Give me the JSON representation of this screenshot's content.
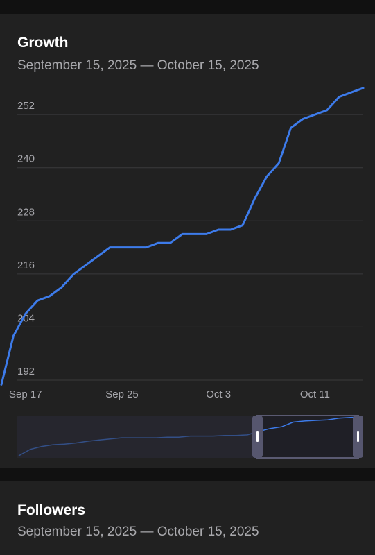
{
  "growth": {
    "title": "Growth",
    "subtitle": "September 15, 2025 — October 15, 2025"
  },
  "followers": {
    "title": "Followers",
    "subtitle": "September 15, 2025 — October 15, 2025"
  },
  "colors": {
    "background": "#111111",
    "card": "#212121",
    "line": "#3d7bea",
    "grid": "#3a3a3c",
    "text_secondary": "#a9a9ad",
    "navigator_bg": "#2c2c34",
    "navigator_window_border": "#5a5a72"
  },
  "chart_data": {
    "type": "line",
    "title": "Growth",
    "subtitle": "September 15, 2025 — October 15, 2025",
    "xlabel": "",
    "ylabel": "",
    "x_range": [
      "2025-09-15",
      "2025-10-15"
    ],
    "ylim": [
      192,
      255
    ],
    "yticks": [
      192,
      204,
      216,
      228,
      240,
      252
    ],
    "xticks": [
      {
        "date": "2025-09-17",
        "label": "Sep 17"
      },
      {
        "date": "2025-09-25",
        "label": "Sep 25"
      },
      {
        "date": "2025-10-03",
        "label": "Oct 3"
      },
      {
        "date": "2025-10-11",
        "label": "Oct 11"
      }
    ],
    "grid": true,
    "legend": "none",
    "series": [
      {
        "x": [
          "2025-09-15",
          "2025-09-16",
          "2025-09-17",
          "2025-09-18",
          "2025-09-19",
          "2025-09-20",
          "2025-09-21",
          "2025-09-22",
          "2025-09-23",
          "2025-09-24",
          "2025-09-25",
          "2025-09-26",
          "2025-09-27",
          "2025-09-28",
          "2025-09-29",
          "2025-09-30",
          "2025-10-01",
          "2025-10-02",
          "2025-10-03",
          "2025-10-04",
          "2025-10-05",
          "2025-10-06",
          "2025-10-07",
          "2025-10-08",
          "2025-10-09",
          "2025-10-10",
          "2025-10-11",
          "2025-10-12",
          "2025-10-13",
          "2025-10-14",
          "2025-10-15"
        ],
        "y": [
          191,
          202,
          207,
          210,
          211,
          213,
          216,
          218,
          220,
          222,
          222,
          222,
          222,
          223,
          223,
          225,
          225,
          225,
          226,
          226,
          227,
          233,
          238,
          241,
          249,
          251,
          252,
          253,
          256,
          257,
          258
        ]
      }
    ],
    "navigator": {
      "window_start": "2025-09-15",
      "window_end": "2025-10-15"
    }
  }
}
